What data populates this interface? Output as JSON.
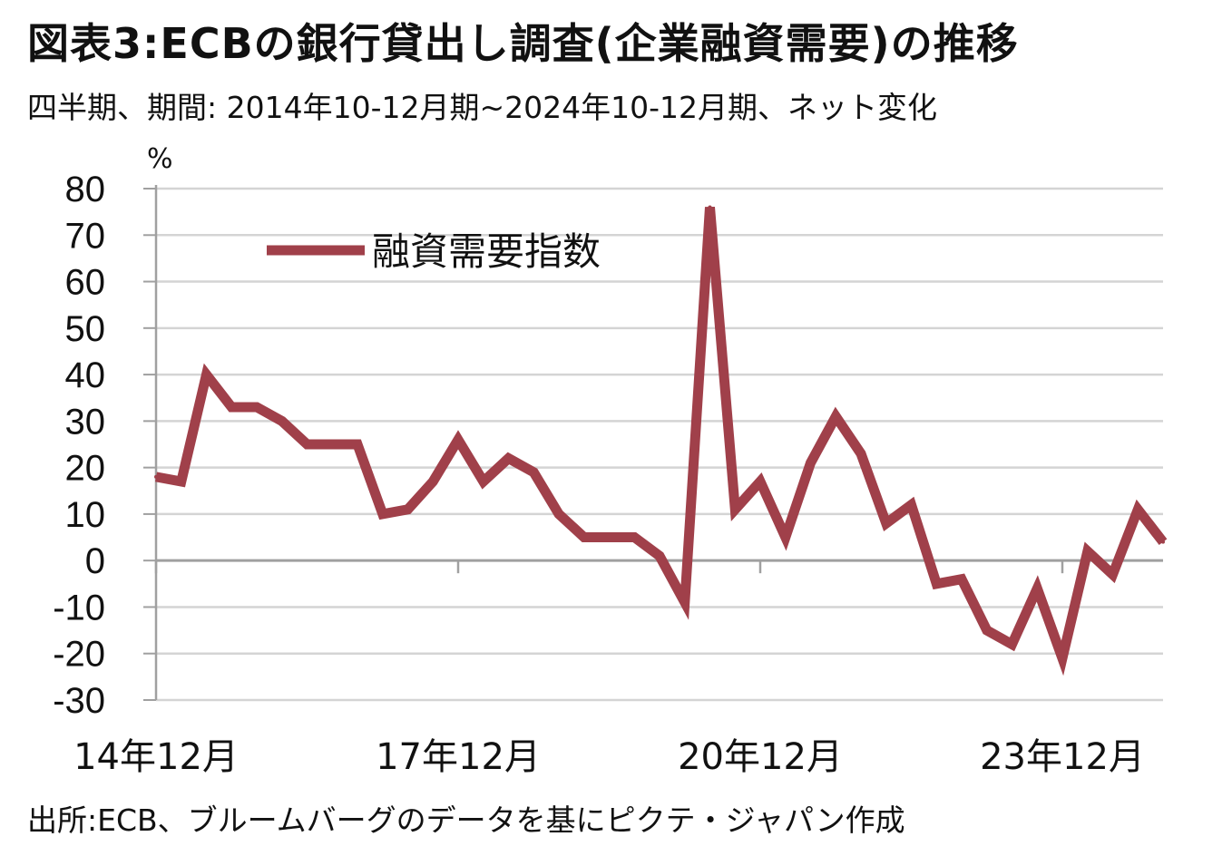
{
  "header": {
    "title": "図表3:ECBの銀行貸出し調査(企業融資需要)の推移",
    "subtitle": "四半期、期間: 2014年10-12月期~2024年10-12月期、ネット変化"
  },
  "footer": {
    "source": "出所:ECB、ブルームバーグのデータを基にピクテ・ジャパン作成"
  },
  "colors": {
    "series": "#a0404a",
    "grid": "#d4d4d4",
    "axis": "#a0a0a0"
  },
  "chart_data": {
    "type": "line",
    "title": "",
    "xlabel": "",
    "ylabel": "%",
    "ylim": [
      -30,
      80
    ],
    "yticks": [
      80,
      70,
      60,
      50,
      40,
      30,
      20,
      10,
      0,
      -10,
      -20,
      -30
    ],
    "grid": true,
    "legend_position": "top-left",
    "x_tick_labels": [
      {
        "index": 0,
        "label": "14年12月"
      },
      {
        "index": 12,
        "label": "17年12月"
      },
      {
        "index": 24,
        "label": "20年12月"
      },
      {
        "index": 36,
        "label": "23年12月"
      }
    ],
    "series": [
      {
        "name": "融資需要指数",
        "values": [
          18,
          17,
          40,
          33,
          33,
          30,
          25,
          25,
          25,
          10,
          11,
          17,
          26,
          17,
          22,
          19,
          10,
          5,
          5,
          5,
          1,
          -9,
          76,
          11,
          17,
          5,
          21,
          31,
          23,
          8,
          12,
          -5,
          -4,
          -15,
          -18,
          -6,
          -21,
          2,
          -3,
          11,
          4
        ]
      }
    ]
  }
}
